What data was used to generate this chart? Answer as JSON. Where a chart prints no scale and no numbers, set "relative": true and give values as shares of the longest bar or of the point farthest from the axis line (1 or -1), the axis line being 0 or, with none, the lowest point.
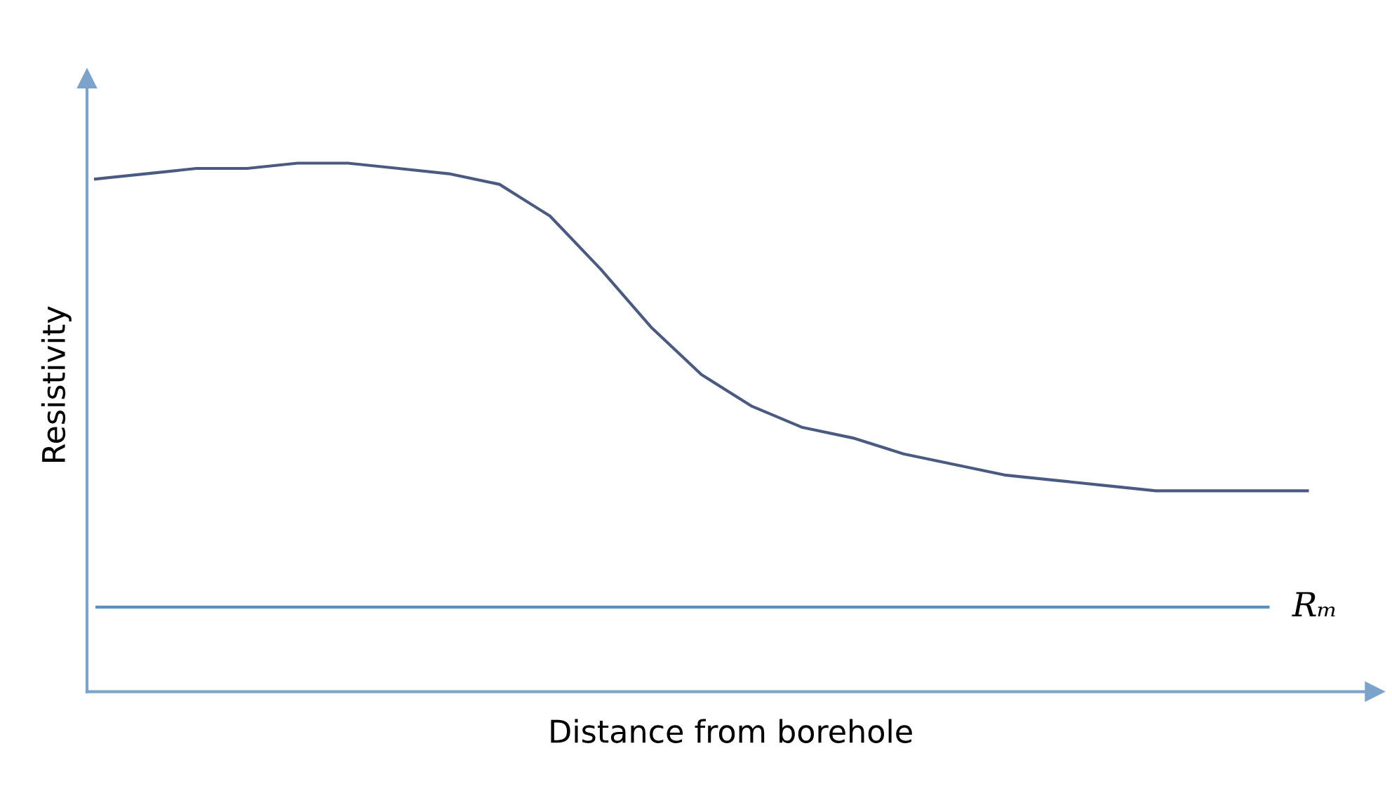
{
  "chart_data": {
    "type": "line",
    "relative": true,
    "xlabel": "Distance from borehole",
    "ylabel": "Resistivity",
    "categories": [
      null,
      null,
      null,
      null,
      null,
      null,
      null,
      null,
      null,
      null,
      null,
      null,
      null,
      null,
      null,
      null,
      null,
      null,
      null,
      null,
      null,
      null,
      null,
      null,
      null
    ],
    "series": [
      {
        "color": "#4a5a80",
        "values": [
          0.97,
          0.98,
          0.99,
          0.99,
          1.0,
          1.0,
          0.99,
          0.98,
          0.96,
          0.9,
          0.8,
          0.69,
          0.6,
          0.54,
          0.5,
          0.48,
          0.45,
          0.43,
          0.41,
          0.4,
          0.39,
          0.38,
          0.38,
          0.38,
          0.38
        ]
      }
    ],
    "ref_lines": [
      {
        "axis": "y",
        "value": 0.16,
        "label": "Rₘ",
        "color": "#5b8fc0"
      }
    ],
    "legend": false,
    "marker": "none",
    "line_style": "solid"
  }
}
